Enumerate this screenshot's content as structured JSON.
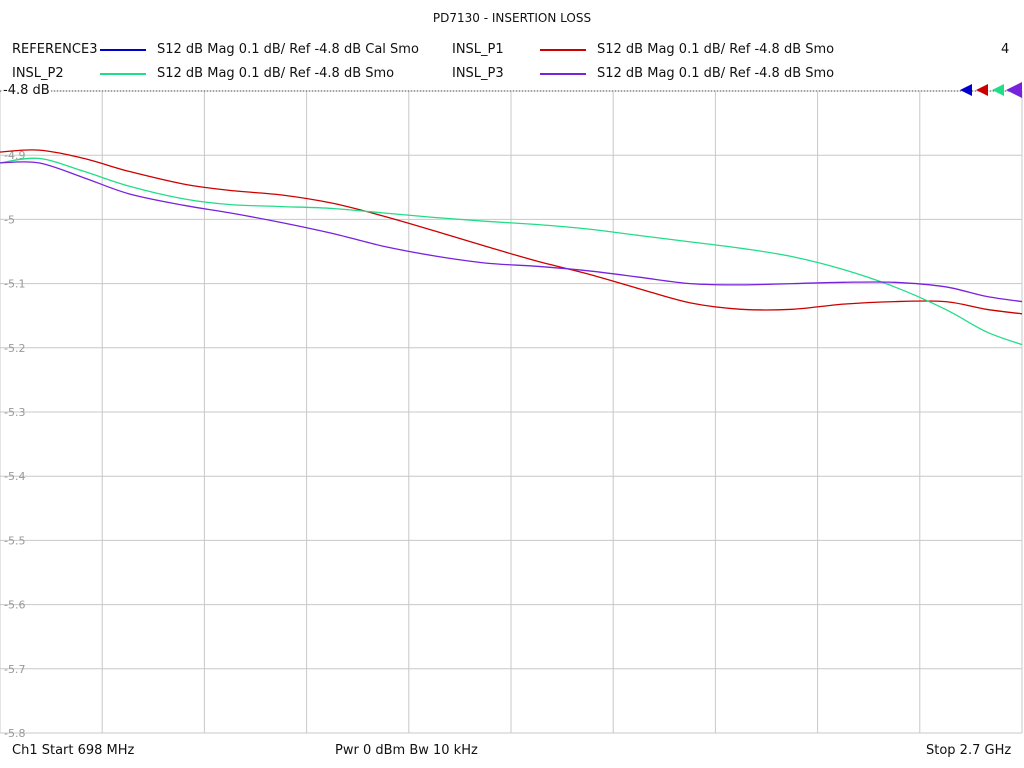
{
  "title": "PD7130 - INSERTION LOSS",
  "channel_number": "4",
  "reference_label": "-4.8 dB",
  "legend": [
    {
      "name": "REFERENCE3",
      "desc": "S12  dB Mag  0.1 dB/ Ref -4.8 dB  Cal Smo",
      "color": "#0000cc"
    },
    {
      "name": "INSL_P1",
      "desc": "S12  dB Mag  0.1 dB/ Ref -4.8 dB  Smo",
      "color": "#cc0000"
    },
    {
      "name": "INSL_P2",
      "desc": "S12  dB Mag  0.1 dB/ Ref -4.8 dB  Smo",
      "color": "#22dd88"
    },
    {
      "name": "INSL_P3",
      "desc": "S12  dB Mag  0.1 dB/ Ref -4.8 dB  Smo",
      "color": "#7722dd"
    }
  ],
  "footer": {
    "start": "Ch1  Start  698 MHz",
    "center": "Pwr  0 dBm  Bw  10 kHz",
    "stop": "Stop  2.7 GHz"
  },
  "chart_data": {
    "type": "line",
    "x_unit": "GHz",
    "xlim": [
      0.698,
      2.7
    ],
    "ylim": [
      -5.8,
      -4.8
    ],
    "y_ticks": [
      -4.8,
      -4.9,
      -5,
      -5.1,
      -5.2,
      -5.3,
      -5.4,
      -5.5,
      -5.6,
      -5.7,
      -5.8
    ],
    "y_tick_labels": [
      "-4.8",
      "-4.9",
      "-5",
      "-5.1",
      "-5.2",
      "-5.3",
      "-5.4",
      "-5.5",
      "-5.6",
      "-5.7",
      "-5.8"
    ],
    "grid": true,
    "series": [
      {
        "name": "INSL_P1",
        "color": "#cc0000",
        "x": [
          0.698,
          0.774,
          0.862,
          0.95,
          1.058,
          1.15,
          1.25,
          1.35,
          1.45,
          1.55,
          1.65,
          1.75,
          1.85,
          1.95,
          2.05,
          2.15,
          2.25,
          2.35,
          2.45,
          2.55,
          2.63,
          2.7
        ],
        "y": [
          -4.895,
          -4.892,
          -4.905,
          -4.925,
          -4.945,
          -4.955,
          -4.962,
          -4.975,
          -4.995,
          -5.018,
          -5.042,
          -5.065,
          -5.085,
          -5.108,
          -5.13,
          -5.14,
          -5.14,
          -5.132,
          -5.128,
          -5.128,
          -5.14,
          -5.147
        ]
      },
      {
        "name": "INSL_P2",
        "color": "#22dd88",
        "x": [
          0.698,
          0.774,
          0.862,
          0.95,
          1.058,
          1.15,
          1.25,
          1.35,
          1.45,
          1.55,
          1.65,
          1.75,
          1.85,
          1.95,
          2.05,
          2.15,
          2.25,
          2.35,
          2.45,
          2.55,
          2.63,
          2.7
        ],
        "y": [
          -4.912,
          -4.905,
          -4.925,
          -4.948,
          -4.968,
          -4.977,
          -4.98,
          -4.983,
          -4.99,
          -4.997,
          -5.003,
          -5.008,
          -5.015,
          -5.025,
          -5.035,
          -5.045,
          -5.058,
          -5.078,
          -5.105,
          -5.14,
          -5.175,
          -5.195
        ]
      },
      {
        "name": "INSL_P3",
        "color": "#7722dd",
        "x": [
          0.698,
          0.774,
          0.862,
          0.95,
          1.058,
          1.15,
          1.25,
          1.35,
          1.45,
          1.55,
          1.65,
          1.75,
          1.85,
          1.95,
          2.05,
          2.15,
          2.25,
          2.35,
          2.45,
          2.55,
          2.63,
          2.7
        ],
        "y": [
          -4.912,
          -4.912,
          -4.935,
          -4.96,
          -4.978,
          -4.99,
          -5.005,
          -5.022,
          -5.042,
          -5.057,
          -5.068,
          -5.073,
          -5.08,
          -5.09,
          -5.1,
          -5.102,
          -5.1,
          -5.098,
          -5.098,
          -5.105,
          -5.12,
          -5.128
        ]
      }
    ]
  }
}
